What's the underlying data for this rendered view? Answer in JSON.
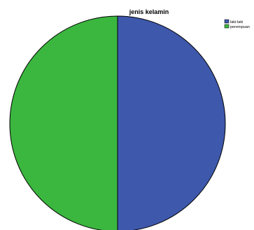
{
  "chart_data": {
    "type": "pie",
    "title": "jenis kelamin",
    "slices": [
      {
        "label": "laki-laki",
        "value": 50,
        "color": "#3e58ac"
      },
      {
        "label": "perempuan",
        "value": 50,
        "color": "#3bb63f"
      }
    ],
    "legend_position": "top-right",
    "start_angle": "top",
    "direction": "clockwise"
  }
}
